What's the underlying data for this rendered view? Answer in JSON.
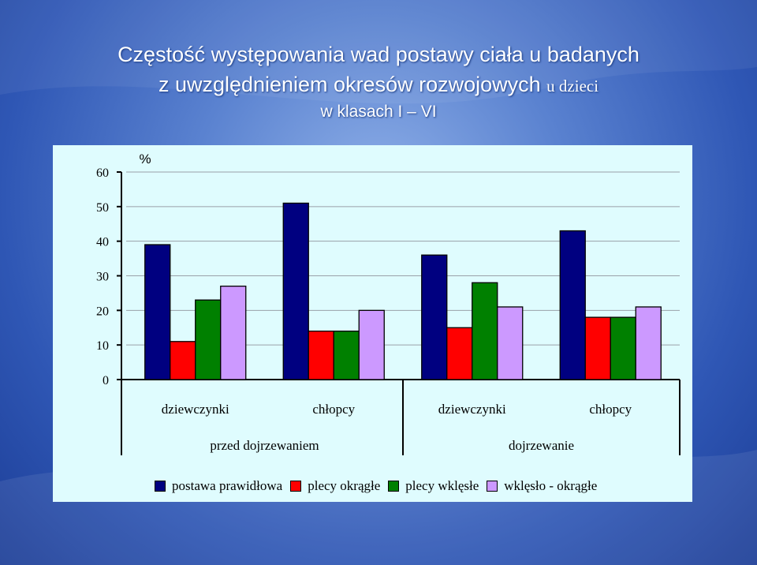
{
  "title": {
    "line1": "Częstość występowania wad postawy ciała u badanych",
    "line2_main": "z uwzględnieniem okresów rozwojowych",
    "line2_tail": "u dzieci",
    "line3": "w klasach I – VI"
  },
  "chart_data": {
    "type": "bar",
    "ylabel": "%",
    "ylim": [
      0,
      60
    ],
    "yticks": [
      0,
      10,
      20,
      30,
      40,
      50,
      60
    ],
    "grid": true,
    "legend_position": "bottom",
    "groups": [
      "przed dojrzewaniem",
      "dojrzewanie"
    ],
    "categories": [
      "dziewczynki",
      "chłopcy",
      "dziewczynki",
      "chłopcy"
    ],
    "series": [
      {
        "name": "postawa prawidłowa",
        "color": "#000080",
        "values": [
          39,
          51,
          36,
          43
        ]
      },
      {
        "name": "plecy okrągłe",
        "color": "#ff0000",
        "values": [
          11,
          14,
          15,
          18
        ]
      },
      {
        "name": "plecy wklęsłe",
        "color": "#008000",
        "values": [
          23,
          14,
          28,
          18
        ]
      },
      {
        "name": "wklęsło - okrągłe",
        "color": "#cc99ff",
        "values": [
          27,
          20,
          21,
          21
        ]
      }
    ]
  }
}
